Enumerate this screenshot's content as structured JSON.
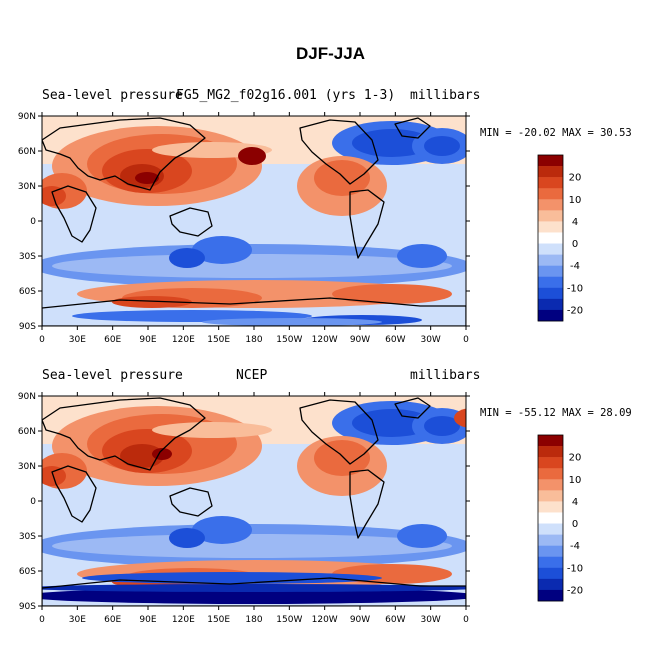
{
  "title": "DJF-JJA",
  "colors": {
    "levels": [
      "#000080",
      "#0a2ab0",
      "#1c4fd8",
      "#3a6fea",
      "#6a95f0",
      "#9cb9f4",
      "#cfe0fb",
      "#ffffff",
      "#fde1cc",
      "#f9bd9a",
      "#f3926a",
      "#ea6a3e",
      "#d9461f",
      "#bb2a0c",
      "#8b0000"
    ],
    "land_outline": "#000000"
  },
  "colorbar": {
    "labels": [
      "20",
      "10",
      "4",
      "0",
      "-4",
      "-10",
      "-20"
    ]
  },
  "axes": {
    "lat_labels": [
      "90N",
      "60N",
      "30N",
      "0",
      "30S",
      "60S",
      "90S"
    ],
    "lon_labels": [
      "0",
      "30E",
      "60E",
      "90E",
      "120E",
      "150E",
      "180",
      "150W",
      "120W",
      "90W",
      "60W",
      "30W",
      "0"
    ]
  },
  "panels": [
    {
      "left_label": "Sea-level pressure",
      "center_label": "FG5_MG2_f02g16.001 (yrs 1-3)",
      "right_label": "millibars",
      "min_max": "MIN = -20.02 MAX =  30.53"
    },
    {
      "left_label": "Sea-level pressure",
      "center_label": "NCEP",
      "right_label": "millibars",
      "min_max": "MIN = -55.12 MAX =  28.09"
    }
  ]
}
